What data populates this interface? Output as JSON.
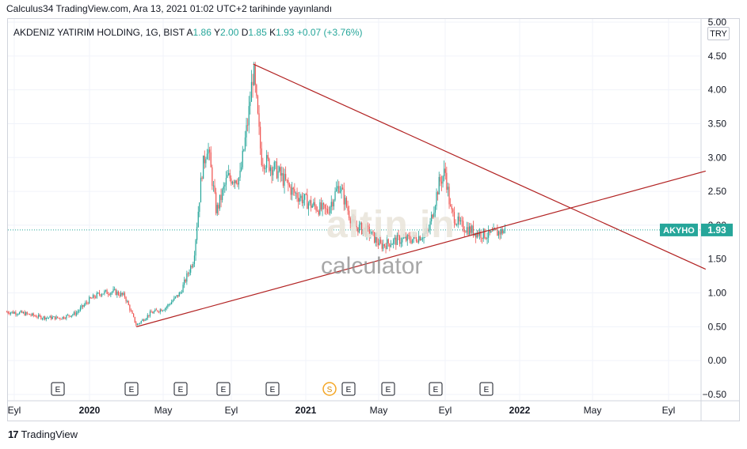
{
  "header": {
    "published_line": "Calculus34 TradingView.com, Ara 13, 2021 01:02 UTC+2 tarihinde yayınlandı"
  },
  "legend": {
    "symbol": "AKDENIZ YATIRIM HOLDING, 1G, BIST",
    "open_label": "A",
    "open": "1.86",
    "high_label": "Y",
    "high": "2.00",
    "low_label": "D",
    "low": "1.85",
    "close_label": "K",
    "close": "1.93",
    "change": "+0.07 (+3.76%)"
  },
  "currency": "TRY",
  "price_tag": {
    "ticker": "AKYHO",
    "price": "1.93"
  },
  "watermark": {
    "brand": "altin.in",
    "sub": "calculator"
  },
  "footer": {
    "logo": "17",
    "brand": "TradingView"
  },
  "colors": {
    "up": "#26a69a",
    "down": "#ef5350",
    "trendline": "#b22222",
    "tag_bg": "#26a69a"
  },
  "chart_data": {
    "type": "candlestick",
    "y_ticks": [
      "5.00",
      "4.50",
      "4.00",
      "3.50",
      "3.00",
      "2.50",
      "2.00",
      "1.50",
      "1.00",
      "0.50",
      "0.00",
      "−0.50"
    ],
    "ylim": [
      -0.5,
      5.0
    ],
    "x_ticks": [
      {
        "label": "Eyl",
        "bold": false
      },
      {
        "label": "2020",
        "bold": true
      },
      {
        "label": "May",
        "bold": false
      },
      {
        "label": "Eyl",
        "bold": false
      },
      {
        "label": "2021",
        "bold": true
      },
      {
        "label": "May",
        "bold": false
      },
      {
        "label": "Eyl",
        "bold": false
      },
      {
        "label": "2022",
        "bold": true
      },
      {
        "label": "May",
        "bold": false
      },
      {
        "label": "Eyl",
        "bold": false
      }
    ],
    "events": [
      "E",
      "E",
      "E",
      "E",
      "E",
      "S",
      "E",
      "E",
      "E",
      "E"
    ],
    "last_close": 1.93,
    "price_path": [
      [
        "2019-08-20",
        0.72
      ],
      [
        "2019-09-15",
        0.7
      ],
      [
        "2019-10-15",
        0.64
      ],
      [
        "2019-11-15",
        0.63
      ],
      [
        "2019-12-10",
        0.7
      ],
      [
        "2020-01-01",
        0.9
      ],
      [
        "2020-01-20",
        1.0
      ],
      [
        "2020-02-10",
        1.02
      ],
      [
        "2020-02-28",
        0.95
      ],
      [
        "2020-03-18",
        0.52
      ],
      [
        "2020-04-10",
        0.7
      ],
      [
        "2020-05-05",
        0.78
      ],
      [
        "2020-06-01",
        1.0
      ],
      [
        "2020-06-25",
        1.5
      ],
      [
        "2020-07-10",
        2.8
      ],
      [
        "2020-07-20",
        3.2
      ],
      [
        "2020-08-05",
        2.2
      ],
      [
        "2020-08-25",
        2.7
      ],
      [
        "2020-09-15",
        2.7
      ],
      [
        "2020-09-29",
        3.6
      ],
      [
        "2020-10-07",
        4.3
      ],
      [
        "2020-10-20",
        3.0
      ],
      [
        "2020-11-15",
        2.8
      ],
      [
        "2020-12-10",
        2.5
      ],
      [
        "2021-01-10",
        2.3
      ],
      [
        "2021-02-05",
        2.2
      ],
      [
        "2021-02-25",
        2.6
      ],
      [
        "2021-03-20",
        2.0
      ],
      [
        "2021-04-15",
        1.9
      ],
      [
        "2021-05-05",
        1.7
      ],
      [
        "2021-06-05",
        1.78
      ],
      [
        "2021-07-05",
        1.8
      ],
      [
        "2021-08-01",
        1.9
      ],
      [
        "2021-08-20",
        2.6
      ],
      [
        "2021-09-01",
        2.8
      ],
      [
        "2021-09-10",
        2.2
      ],
      [
        "2021-09-25",
        2.0
      ],
      [
        "2021-10-20",
        1.9
      ],
      [
        "2021-11-10",
        1.85
      ],
      [
        "2021-12-10",
        1.93
      ]
    ],
    "trendlines": [
      {
        "name": "descending",
        "from": [
          "2020-10-07",
          4.38
        ],
        "to": [
          "2022-10-31",
          1.35
        ]
      },
      {
        "name": "ascending",
        "from": [
          "2020-03-18",
          0.5
        ],
        "to": [
          "2022-10-31",
          2.8
        ]
      }
    ]
  }
}
